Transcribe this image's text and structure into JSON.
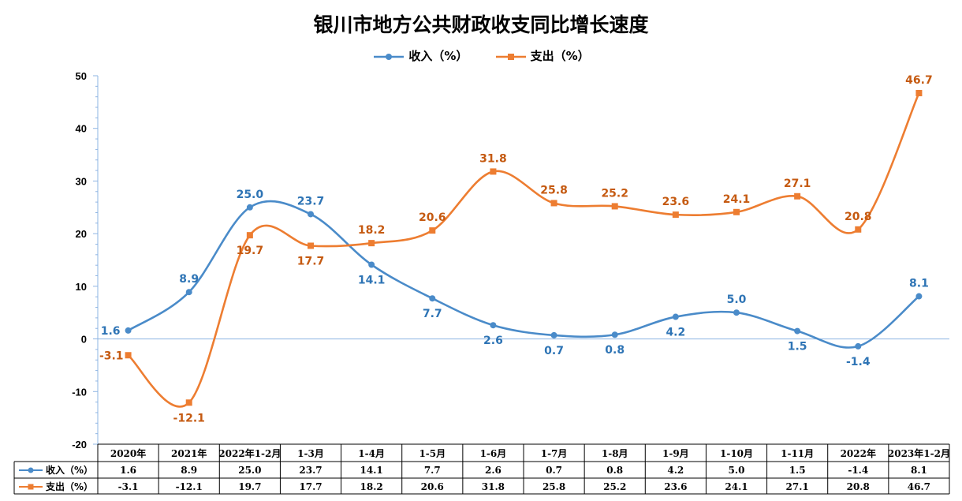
{
  "chart_data": {
    "type": "line",
    "title": "银川市地方公共财政收支同比增长速度",
    "categories": [
      "2020年",
      "2021年",
      "2022年1-2月",
      "1-3月",
      "1-4月",
      "1-5月",
      "1-6月",
      "1-7月",
      "1-8月",
      "1-9月",
      "1-10月",
      "1-11月",
      "2022年",
      "2023年1-2月"
    ],
    "series": [
      {
        "name": "收入（%）",
        "color": "#4a8bc9",
        "label_color": "#2e74b5",
        "marker": "circle",
        "values": [
          1.6,
          8.9,
          25.0,
          23.7,
          14.1,
          7.7,
          2.6,
          0.7,
          0.8,
          4.2,
          5.0,
          1.5,
          -1.4,
          8.1
        ],
        "display": [
          "1.6",
          "8.9",
          "25.0",
          "23.7",
          "14.1",
          "7.7",
          "2.6",
          "0.7",
          "0.8",
          "4.2",
          "5.0",
          "1.5",
          "-1.4",
          "8.1"
        ]
      },
      {
        "name": "支出（%）",
        "color": "#ed7d31",
        "label_color": "#c55a11",
        "marker": "square",
        "values": [
          -3.1,
          -12.1,
          19.7,
          17.7,
          18.2,
          20.6,
          31.8,
          25.8,
          25.2,
          23.6,
          24.1,
          27.1,
          20.8,
          46.7
        ],
        "display": [
          "-3.1",
          "-12.1",
          "19.7",
          "17.7",
          "18.2",
          "20.6",
          "31.8",
          "25.8",
          "25.2",
          "23.6",
          "24.1",
          "27.1",
          "20.8",
          "46.7"
        ]
      }
    ],
    "ylim": [
      -20,
      50
    ],
    "yticks": [
      -20,
      -10,
      0,
      10,
      20,
      30,
      40,
      50
    ],
    "grid": false,
    "legend_position": "top-center",
    "data_table": true
  }
}
